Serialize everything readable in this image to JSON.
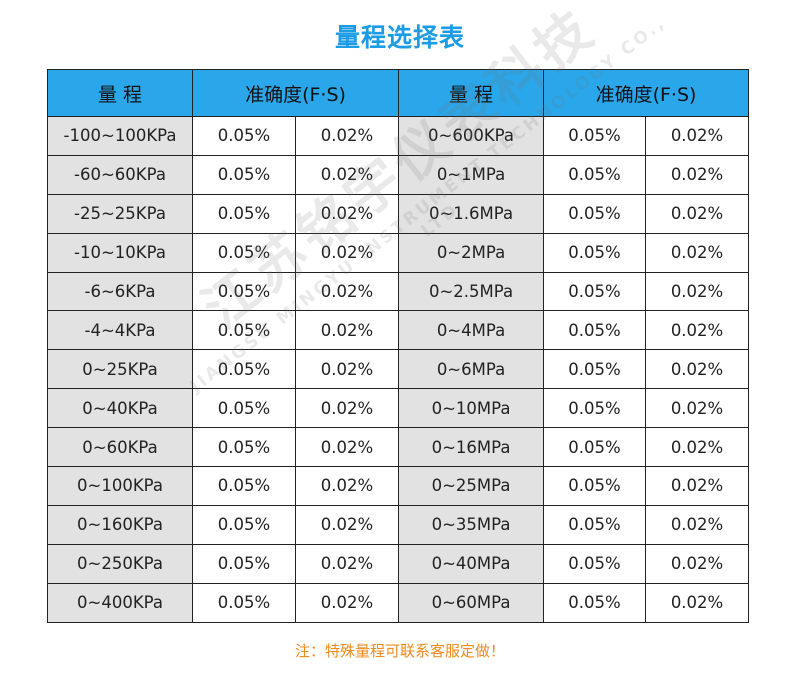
{
  "title": "量程选择表",
  "table": {
    "headers": {
      "range": "量 程",
      "accuracy": "准确度(F·S)"
    },
    "rows": [
      {
        "l_range": "-100~100KPa",
        "l_a": "0.05%",
        "l_b": "0.02%",
        "r_range": "0~600KPa",
        "r_a": "0.05%",
        "r_b": "0.02%"
      },
      {
        "l_range": "-60~60KPa",
        "l_a": "0.05%",
        "l_b": "0.02%",
        "r_range": "0~1MPa",
        "r_a": "0.05%",
        "r_b": "0.02%"
      },
      {
        "l_range": "-25~25KPa",
        "l_a": "0.05%",
        "l_b": "0.02%",
        "r_range": "0~1.6MPa",
        "r_a": "0.05%",
        "r_b": "0.02%"
      },
      {
        "l_range": "-10~10KPa",
        "l_a": "0.05%",
        "l_b": "0.02%",
        "r_range": "0~2MPa",
        "r_a": "0.05%",
        "r_b": "0.02%"
      },
      {
        "l_range": "-6~6KPa",
        "l_a": "0.05%",
        "l_b": "0.02%",
        "r_range": "0~2.5MPa",
        "r_a": "0.05%",
        "r_b": "0.02%"
      },
      {
        "l_range": "-4~4KPa",
        "l_a": "0.05%",
        "l_b": "0.02%",
        "r_range": "0~4MPa",
        "r_a": "0.05%",
        "r_b": "0.02%"
      },
      {
        "l_range": "0~25KPa",
        "l_a": "0.05%",
        "l_b": "0.02%",
        "r_range": "0~6MPa",
        "r_a": "0.05%",
        "r_b": "0.02%"
      },
      {
        "l_range": "0~40KPa",
        "l_a": "0.05%",
        "l_b": "0.02%",
        "r_range": "0~10MPa",
        "r_a": "0.05%",
        "r_b": "0.02%"
      },
      {
        "l_range": "0~60KPa",
        "l_a": "0.05%",
        "l_b": "0.02%",
        "r_range": "0~16MPa",
        "r_a": "0.05%",
        "r_b": "0.02%"
      },
      {
        "l_range": "0~100KPa",
        "l_a": "0.05%",
        "l_b": "0.02%",
        "r_range": "0~25MPa",
        "r_a": "0.05%",
        "r_b": "0.02%"
      },
      {
        "l_range": "0~160KPa",
        "l_a": "0.05%",
        "l_b": "0.02%",
        "r_range": "0~35MPa",
        "r_a": "0.05%",
        "r_b": "0.02%"
      },
      {
        "l_range": "0~250KPa",
        "l_a": "0.05%",
        "l_b": "0.02%",
        "r_range": "0~40MPa",
        "r_a": "0.05%",
        "r_b": "0.02%"
      },
      {
        "l_range": "0~400KPa",
        "l_a": "0.05%",
        "l_b": "0.02%",
        "r_range": "0~60MPa",
        "r_a": "0.05%",
        "r_b": "0.02%"
      }
    ]
  },
  "footnote": "注：特殊量程可联系客服定做！",
  "watermark": {
    "main": "江苏铭宇仪表科技",
    "sub": "JIANGSU MINGYU INSTRUMENT TECHNOLOGY CO., LTD"
  },
  "colors": {
    "title": "#1c9be6",
    "header_bg": "#2aa6ea",
    "range_bg": "#e2e2e2",
    "footnote": "#f08a1c"
  }
}
